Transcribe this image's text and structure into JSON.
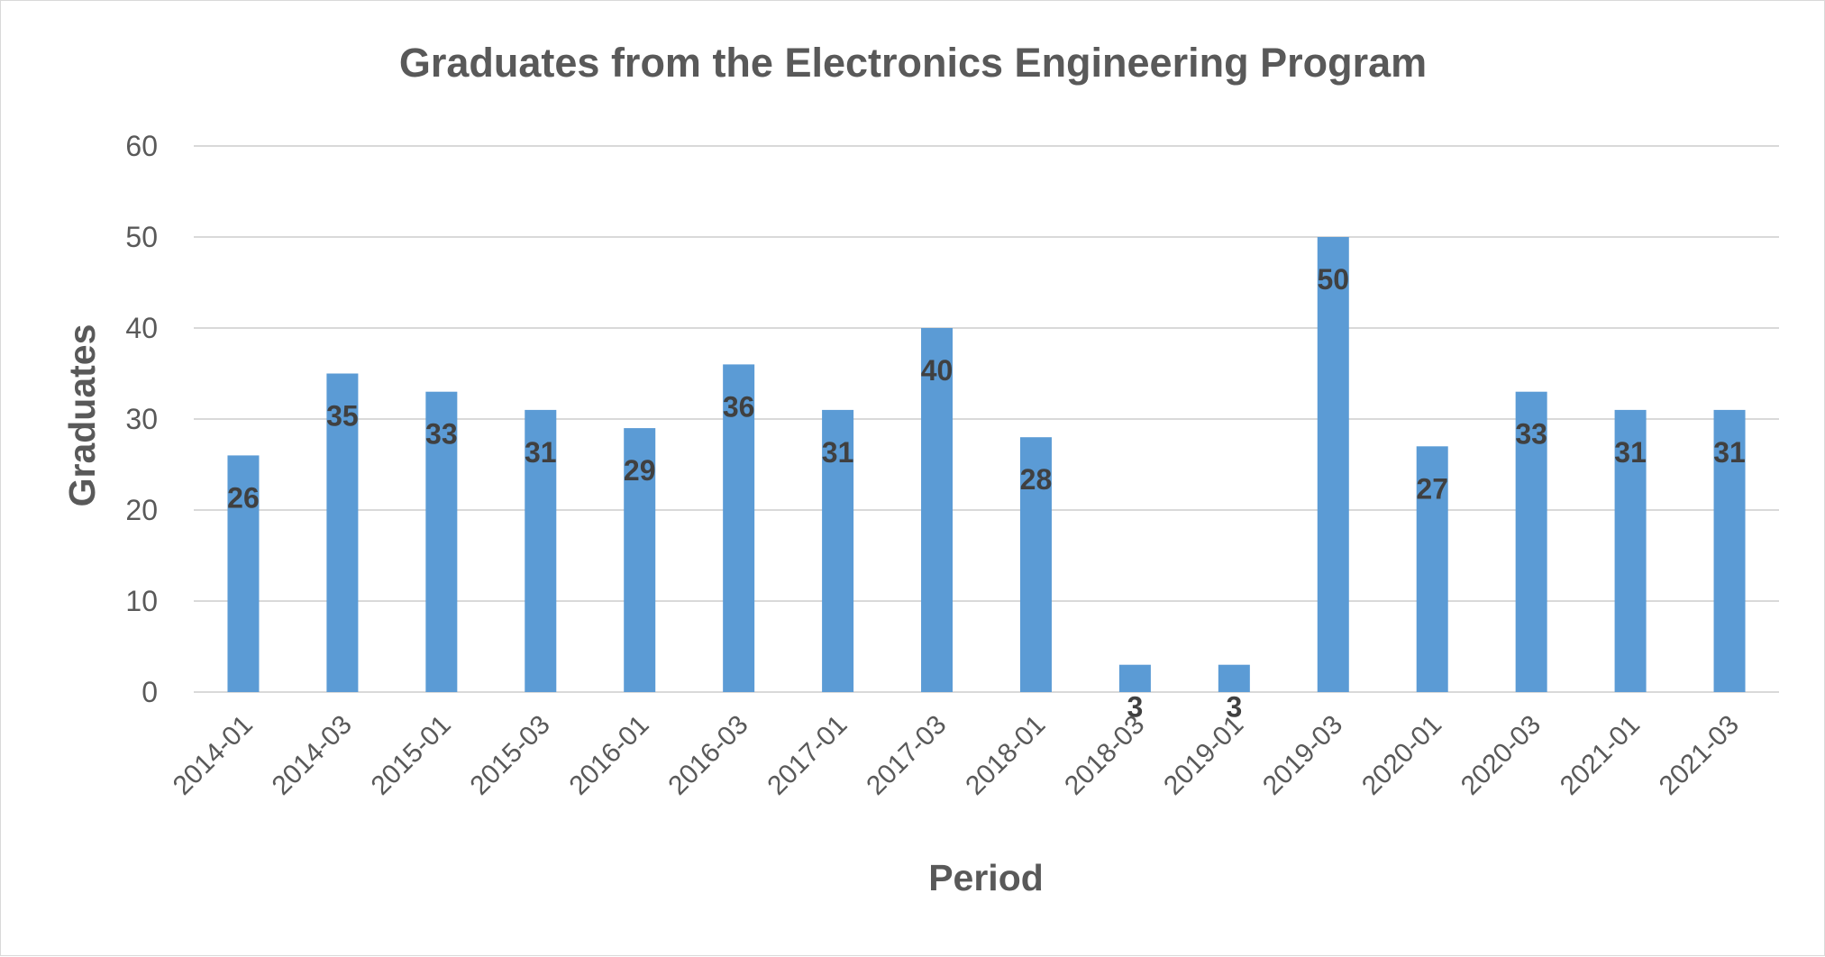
{
  "chart_data": {
    "type": "bar",
    "title": "Graduates from the Electronics Engineering Program",
    "xlabel": "Period",
    "ylabel": "Graduates",
    "categories": [
      "2014-01",
      "2014-03",
      "2015-01",
      "2015-03",
      "2016-01",
      "2016-03",
      "2017-01",
      "2017-03",
      "2018-01",
      "2018-03",
      "2019-01",
      "2019-03",
      "2020-01",
      "2020-03",
      "2021-01",
      "2021-03"
    ],
    "values": [
      26,
      35,
      33,
      31,
      29,
      36,
      31,
      40,
      28,
      3,
      3,
      50,
      27,
      33,
      31,
      31
    ],
    "ylim": [
      0,
      60
    ],
    "yticks": [
      "0",
      "10",
      "20",
      "30",
      "40",
      "50",
      "60"
    ],
    "grid": true,
    "legend": "none",
    "data_labels": true,
    "colors": {
      "bar": "#5b9bd5",
      "grid": "#d9d9d9",
      "text": "#595959",
      "label": "#404040"
    }
  }
}
